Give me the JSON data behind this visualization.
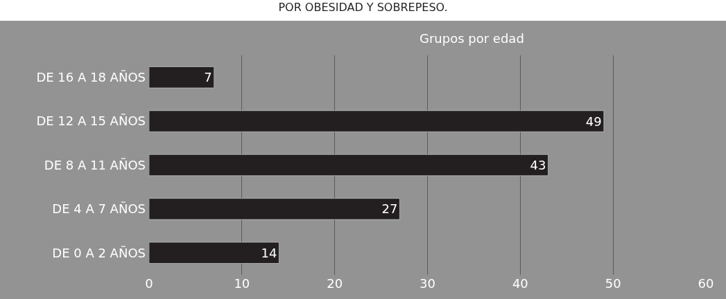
{
  "chart_data": {
    "type": "bar",
    "orientation": "horizontal",
    "title": "POR OBESIDAD Y SOBREPESO.",
    "subtitle": "Grupos por edad",
    "categories": [
      "DE 16 A 18 AÑOS",
      "DE 12 A 15 AÑOS",
      "DE 8 A 11 AÑOS",
      "DE 4 A 7 AÑOS",
      "DE 0 A 2 AÑOS"
    ],
    "values": [
      7,
      49,
      43,
      27,
      14
    ],
    "color": "#231f20",
    "data_labels": true,
    "xlim": [
      0,
      60
    ],
    "xticks": [
      0,
      10,
      20,
      30,
      40,
      50,
      60
    ],
    "grid": "x",
    "legend": false
  }
}
